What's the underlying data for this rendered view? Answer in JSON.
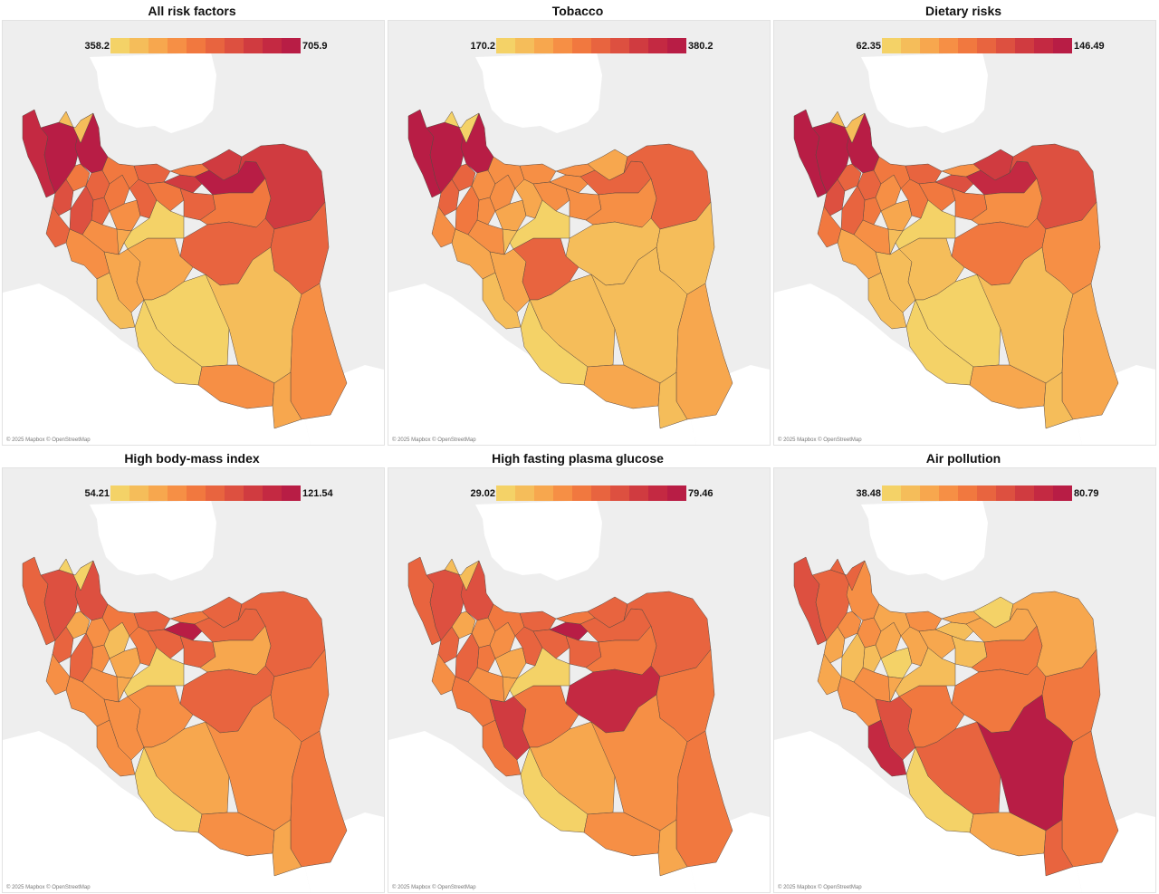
{
  "attribution": "© 2025 Mapbox © OpenStreetMap",
  "palette": [
    "#f4d267",
    "#f5bd5a",
    "#f7a74e",
    "#f68f45",
    "#f1783f",
    "#e8643f",
    "#dd5040",
    "#d03b40",
    "#c42942",
    "#b81d45"
  ],
  "panels": [
    {
      "title": "All risk factors",
      "legend_min": "358.2",
      "legend_max": "705.9",
      "region_levels": [
        8,
        9,
        9,
        4,
        6,
        5,
        5,
        6,
        5,
        4,
        3,
        4,
        5,
        5,
        4,
        7,
        4,
        5,
        3,
        3,
        7,
        9,
        7,
        4,
        5,
        5,
        2,
        1,
        2,
        0,
        2,
        0,
        1,
        0,
        3,
        3,
        2,
        1
      ]
    },
    {
      "title": "Tobacco",
      "legend_min": "170.2",
      "legend_max": "380.2",
      "region_levels": [
        9,
        9,
        9,
        5,
        5,
        3,
        3,
        4,
        3,
        3,
        2,
        3,
        3,
        2,
        3,
        3,
        3,
        3,
        3,
        2,
        2,
        5,
        5,
        3,
        1,
        1,
        2,
        1,
        5,
        0,
        1,
        1,
        1,
        0,
        2,
        2,
        1,
        0
      ]
    },
    {
      "title": "Dietary risks",
      "legend_min": "62.35",
      "legend_max": "146.49",
      "region_levels": [
        9,
        9,
        9,
        5,
        6,
        5,
        4,
        5,
        4,
        3,
        2,
        4,
        5,
        4,
        4,
        6,
        3,
        4,
        3,
        2,
        7,
        8,
        6,
        3,
        4,
        3,
        1,
        1,
        1,
        0,
        1,
        0,
        1,
        0,
        2,
        2,
        1,
        1
      ]
    },
    {
      "title": "High body-mass index",
      "legend_min": "54.21",
      "legend_max": "121.54",
      "region_levels": [
        5,
        6,
        6,
        2,
        5,
        3,
        3,
        5,
        3,
        1,
        2,
        4,
        5,
        4,
        5,
        9,
        4,
        5,
        3,
        3,
        5,
        5,
        5,
        2,
        5,
        4,
        3,
        3,
        3,
        0,
        2,
        2,
        3,
        0,
        3,
        4,
        2,
        0
      ]
    },
    {
      "title": "High fasting plasma glucose",
      "legend_min": "29.02",
      "legend_max": "79.46",
      "region_levels": [
        5,
        6,
        6,
        2,
        5,
        3,
        4,
        5,
        3,
        3,
        2,
        4,
        5,
        5,
        5,
        9,
        4,
        5,
        3,
        4,
        5,
        5,
        5,
        4,
        8,
        4,
        7,
        4,
        4,
        0,
        2,
        2,
        3,
        0,
        3,
        4,
        2,
        1
      ]
    },
    {
      "title": "Air pollution",
      "legend_min": "38.48",
      "legend_max": "80.79",
      "region_levels": [
        6,
        5,
        3,
        3,
        2,
        3,
        1,
        1,
        2,
        2,
        0,
        2,
        3,
        2,
        2,
        1,
        2,
        1,
        3,
        3,
        0,
        2,
        2,
        4,
        4,
        4,
        6,
        8,
        4,
        1,
        2,
        5,
        9,
        0,
        2,
        4,
        5,
        5
      ]
    }
  ]
}
